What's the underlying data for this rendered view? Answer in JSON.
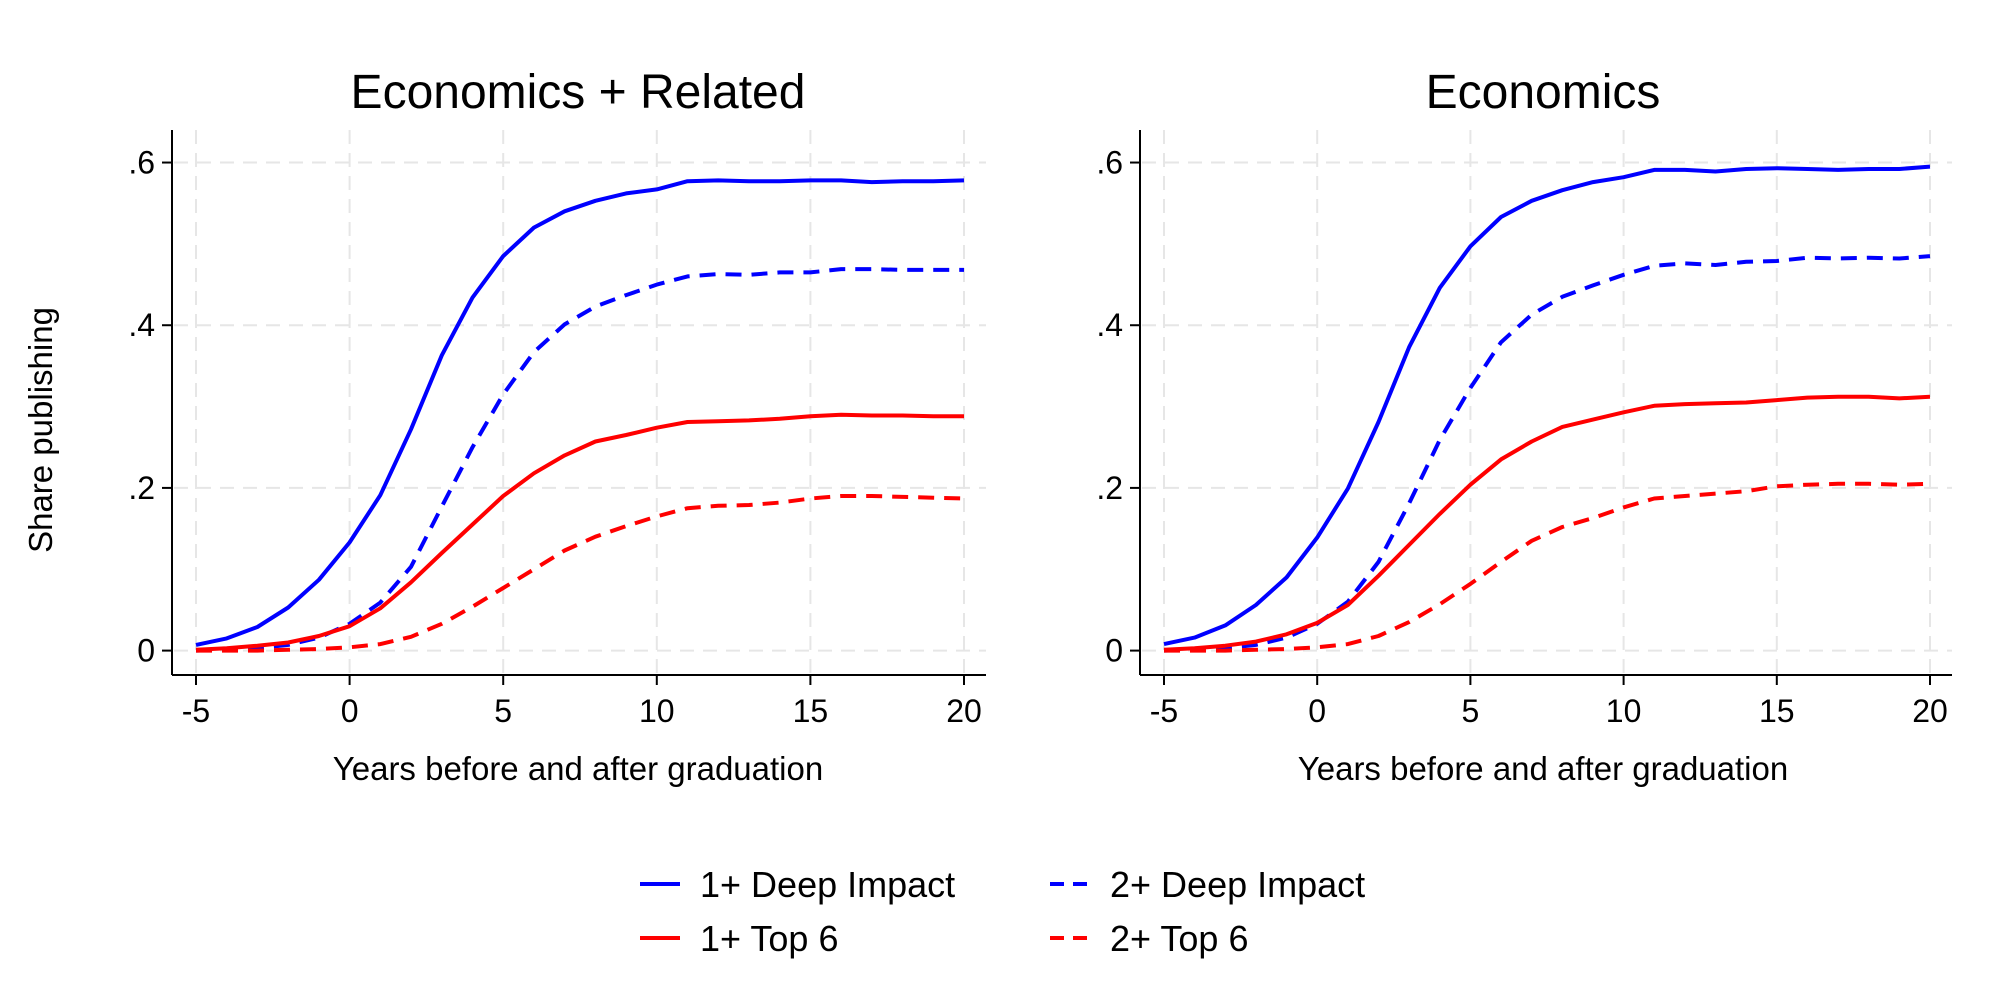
{
  "chart_data": [
    {
      "type": "line",
      "title": "Economics + Related",
      "xlabel": "Years before and after graduation",
      "ylabel": "Share publishing",
      "xlim": [
        -5,
        20
      ],
      "ylim": [
        -0.03,
        0.64
      ],
      "x_ticks": [
        -5,
        0,
        5,
        10,
        15,
        20
      ],
      "x_tick_labels": [
        "-5",
        "0",
        "5",
        "10",
        "15",
        "20"
      ],
      "y_ticks": [
        0,
        0.2,
        0.4,
        0.6
      ],
      "y_tick_labels": [
        "0",
        ".2",
        ".4",
        ".6"
      ],
      "grid": true,
      "x": [
        -5,
        -4,
        -3,
        -2,
        -1,
        0,
        1,
        2,
        3,
        4,
        5,
        6,
        7,
        8,
        9,
        10,
        11,
        12,
        13,
        14,
        15,
        16,
        17,
        18,
        19,
        20
      ],
      "series": [
        {
          "name": "1+ Deep Impact",
          "color": "#0000ff",
          "style": "solid",
          "values": [
            0.007,
            0.015,
            0.029,
            0.053,
            0.087,
            0.133,
            0.191,
            0.272,
            0.363,
            0.434,
            0.485,
            0.52,
            0.54,
            0.553,
            0.562,
            0.567,
            0.577,
            0.578,
            0.577,
            0.577,
            0.578,
            0.578,
            0.576,
            0.577,
            0.577,
            0.578
          ]
        },
        {
          "name": "2+ Deep Impact",
          "color": "#0000ff",
          "style": "dashed",
          "values": [
            0.0,
            0.001,
            0.003,
            0.007,
            0.016,
            0.033,
            0.059,
            0.103,
            0.177,
            0.25,
            0.315,
            0.367,
            0.401,
            0.423,
            0.437,
            0.45,
            0.46,
            0.463,
            0.462,
            0.465,
            0.465,
            0.469,
            0.469,
            0.468,
            0.468,
            0.468
          ]
        },
        {
          "name": "1+ Top 6",
          "color": "#ff0000",
          "style": "solid",
          "values": [
            0.001,
            0.003,
            0.006,
            0.01,
            0.018,
            0.03,
            0.052,
            0.084,
            0.12,
            0.155,
            0.19,
            0.218,
            0.24,
            0.257,
            0.265,
            0.274,
            0.281,
            0.282,
            0.283,
            0.285,
            0.288,
            0.29,
            0.289,
            0.289,
            0.288,
            0.288
          ]
        },
        {
          "name": "2+ Top 6",
          "color": "#ff0000",
          "style": "dashed",
          "values": [
            0.0,
            0.0,
            0.0,
            0.001,
            0.002,
            0.004,
            0.008,
            0.017,
            0.033,
            0.054,
            0.077,
            0.1,
            0.123,
            0.14,
            0.153,
            0.165,
            0.175,
            0.178,
            0.179,
            0.182,
            0.187,
            0.19,
            0.19,
            0.189,
            0.188,
            0.187
          ]
        }
      ]
    },
    {
      "type": "line",
      "title": "Economics",
      "xlabel": "Years before and after graduation",
      "ylabel": "",
      "xlim": [
        -5,
        20
      ],
      "ylim": [
        -0.03,
        0.64
      ],
      "x_ticks": [
        -5,
        0,
        5,
        10,
        15,
        20
      ],
      "x_tick_labels": [
        "-5",
        "0",
        "5",
        "10",
        "15",
        "20"
      ],
      "y_ticks": [
        0,
        0.2,
        0.4,
        0.6
      ],
      "y_tick_labels": [
        "0",
        ".2",
        ".4",
        ".6"
      ],
      "grid": true,
      "x": [
        -5,
        -4,
        -3,
        -2,
        -1,
        0,
        1,
        2,
        3,
        4,
        5,
        6,
        7,
        8,
        9,
        10,
        11,
        12,
        13,
        14,
        15,
        16,
        17,
        18,
        19,
        20
      ],
      "series": [
        {
          "name": "1+ Deep Impact",
          "color": "#0000ff",
          "style": "solid",
          "values": [
            0.008,
            0.016,
            0.031,
            0.056,
            0.09,
            0.139,
            0.199,
            0.281,
            0.373,
            0.446,
            0.497,
            0.533,
            0.553,
            0.566,
            0.576,
            0.582,
            0.591,
            0.591,
            0.589,
            0.592,
            0.593,
            0.592,
            0.591,
            0.592,
            0.592,
            0.595
          ]
        },
        {
          "name": "2+ Deep Impact",
          "color": "#0000ff",
          "style": "dashed",
          "values": [
            0.0,
            0.001,
            0.003,
            0.007,
            0.016,
            0.033,
            0.06,
            0.109,
            0.181,
            0.259,
            0.323,
            0.379,
            0.413,
            0.435,
            0.449,
            0.462,
            0.473,
            0.476,
            0.474,
            0.478,
            0.479,
            0.483,
            0.482,
            0.483,
            0.482,
            0.485
          ]
        },
        {
          "name": "1+ Top 6",
          "color": "#ff0000",
          "style": "solid",
          "values": [
            0.001,
            0.003,
            0.006,
            0.011,
            0.02,
            0.034,
            0.056,
            0.092,
            0.13,
            0.168,
            0.204,
            0.235,
            0.257,
            0.275,
            0.284,
            0.293,
            0.301,
            0.303,
            0.304,
            0.305,
            0.308,
            0.311,
            0.312,
            0.312,
            0.31,
            0.312
          ]
        },
        {
          "name": "2+ Top 6",
          "color": "#ff0000",
          "style": "dashed",
          "values": [
            0.0,
            0.0,
            0.0,
            0.001,
            0.002,
            0.004,
            0.008,
            0.018,
            0.035,
            0.057,
            0.082,
            0.109,
            0.135,
            0.152,
            0.163,
            0.176,
            0.187,
            0.19,
            0.193,
            0.196,
            0.202,
            0.204,
            0.205,
            0.205,
            0.204,
            0.205
          ]
        }
      ]
    }
  ],
  "legend": {
    "position": "bottom",
    "items": [
      {
        "label": "1+ Deep Impact",
        "color": "#0000ff",
        "style": "solid"
      },
      {
        "label": "2+ Deep Impact",
        "color": "#0000ff",
        "style": "dashed"
      },
      {
        "label": "1+ Top 6",
        "color": "#ff0000",
        "style": "solid"
      },
      {
        "label": "2+ Top 6",
        "color": "#ff0000",
        "style": "dashed"
      }
    ]
  }
}
